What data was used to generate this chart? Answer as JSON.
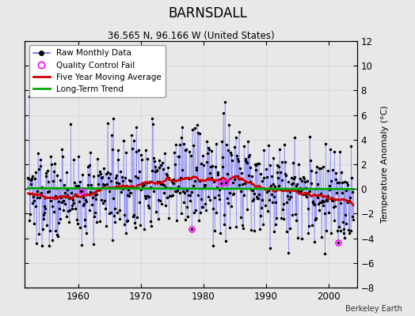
{
  "title": "BARNSDALL",
  "subtitle": "36.565 N, 96.166 W (United States)",
  "ylabel": "Temperature Anomaly (°C)",
  "credit": "Berkeley Earth",
  "start_year": 1952,
  "end_year": 2003,
  "ylim": [
    -8,
    12
  ],
  "yticks": [
    -8,
    -6,
    -4,
    -2,
    0,
    2,
    4,
    6,
    8,
    10,
    12
  ],
  "xticks": [
    1960,
    1970,
    1980,
    1990,
    2000
  ],
  "plot_bg_color": "#e8e8e8",
  "raw_line_color": "#6666ff",
  "raw_dot_color": "#000000",
  "moving_avg_color": "#cc0000",
  "trend_color": "#00aa00",
  "qc_fail_color": "#ff00ff",
  "seed": 137
}
